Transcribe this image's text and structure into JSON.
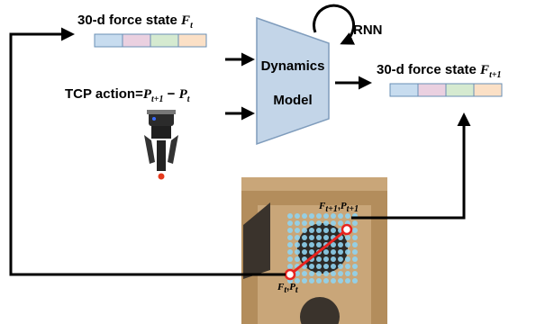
{
  "input_state": {
    "label": "30-d force state",
    "symbol": "F",
    "subscript": "t"
  },
  "action": {
    "label": "TCP action=",
    "first": {
      "symbol": "P",
      "subscript": "t+1"
    },
    "operator": "−",
    "second": {
      "symbol": "P",
      "subscript": "t"
    }
  },
  "model": {
    "line1": "Dynamics",
    "line2": "Model",
    "loop": "RNN"
  },
  "output_state": {
    "label": "30-d force state",
    "symbol": "F",
    "subscript": "t+1"
  },
  "next_point": {
    "first": {
      "symbol": "F",
      "subscript": "t+1"
    },
    "separator": ",",
    "second": {
      "symbol": "P",
      "subscript": "t+1"
    }
  },
  "current_point": {
    "first": {
      "symbol": "F",
      "subscript": "t"
    },
    "separator": ",",
    "second": {
      "symbol": "P",
      "subscript": "t"
    }
  }
}
